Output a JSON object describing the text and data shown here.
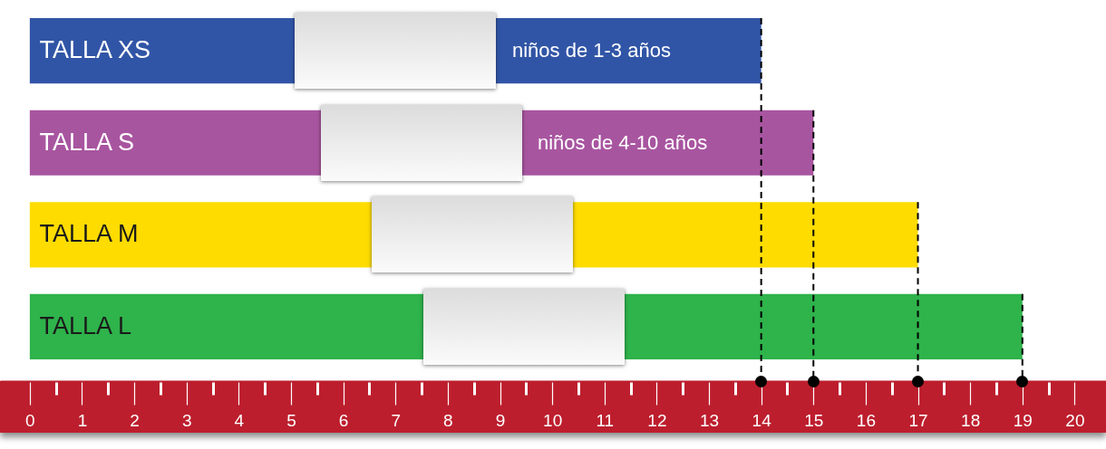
{
  "chart_data": {
    "type": "bar",
    "orientation": "horizontal",
    "categories": [
      "TALLA XS",
      "TALLA S",
      "TALLA M",
      "TALLA L"
    ],
    "values": [
      14,
      15,
      17,
      19
    ],
    "colors": [
      "#3155a6",
      "#a855a0",
      "#fedc00",
      "#2fb34b"
    ],
    "xlim": [
      -0.57,
      20.6
    ],
    "xticks": [
      0,
      {
        "value": 0.5,
        "label": null
      },
      1,
      {
        "value": 1.5,
        "label": null
      },
      2,
      {
        "value": 2.5,
        "label": null
      },
      3,
      {
        "value": 3.5,
        "label": null
      },
      4,
      {
        "value": 4.5,
        "label": null
      },
      5,
      {
        "value": 5.5,
        "label": null
      },
      6,
      {
        "value": 6.5,
        "label": null
      },
      7,
      {
        "value": 7.5,
        "label": null
      },
      8,
      {
        "value": 8.5,
        "label": null
      },
      9,
      {
        "value": 9.5,
        "label": null
      },
      10,
      {
        "value": 10.5,
        "label": null
      },
      11,
      {
        "value": 11.5,
        "label": null
      },
      12,
      {
        "value": 12.5,
        "label": null
      },
      13,
      {
        "value": 13.5,
        "label": null
      },
      14,
      {
        "value": 14.5,
        "label": null
      },
      15,
      {
        "value": 15.5,
        "label": null
      },
      16,
      {
        "value": 16.5,
        "label": null
      },
      17,
      {
        "value": 17.5,
        "label": null
      },
      18,
      {
        "value": 18.5,
        "label": null
      },
      19,
      {
        "value": 19.5,
        "label": null
      },
      20
    ],
    "ref_lines": [
      {
        "axis": "x",
        "value": 14,
        "line_style": "dashed",
        "color": "#000000"
      },
      {
        "axis": "x",
        "value": 15,
        "line_style": "dashed",
        "color": "#000000"
      },
      {
        "axis": "x",
        "value": 17,
        "line_style": "dashed",
        "color": "#000000"
      },
      {
        "axis": "x",
        "value": 19,
        "line_style": "dashed",
        "color": "#000000"
      }
    ],
    "annotations": [
      "niños de 1-3 años",
      "niños de 4-10 años"
    ]
  }
}
